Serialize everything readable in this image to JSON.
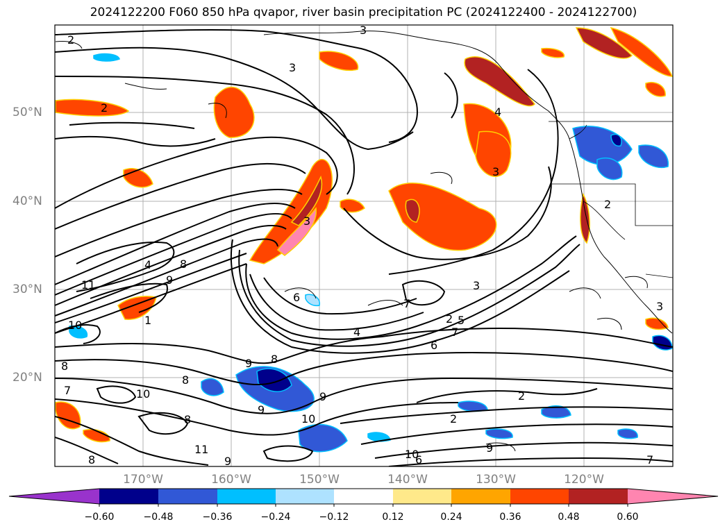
{
  "title": "2024122200 F060 850 hPa qvapor, river basin precipitation PC (2024122400 - 2024122700)",
  "lat_labels": [
    "50°N",
    "40°N",
    "30°N",
    "20°N"
  ],
  "lon_labels": [
    "170°W",
    "160°W",
    "150°W",
    "140°W",
    "130°W",
    "120°W"
  ],
  "colorbar": {
    "colors": [
      "#9933cc",
      "#00008b",
      "#3158d6",
      "#00bfff",
      "#aee2ff",
      "#ffffff",
      "#ffe98a",
      "#ffa500",
      "#ff4500",
      "#b22222",
      "#ff85b0"
    ],
    "tick_labels": [
      "−0.60",
      "−0.48",
      "−0.36",
      "−0.24",
      "−0.12",
      "0.12",
      "0.24",
      "0.36",
      "0.48",
      "0.60"
    ]
  },
  "contour_labels": [
    "2",
    "3",
    "3",
    "2",
    "4",
    "3",
    "2",
    "3",
    "4",
    "8",
    "11",
    "9",
    "10",
    "8",
    "6",
    "7",
    "1",
    "4",
    "3",
    "2",
    "6",
    "5",
    "7",
    "8",
    "9",
    "8",
    "10",
    "7",
    "2",
    "2",
    "8",
    "9",
    "9",
    "10",
    "11",
    "9",
    "10",
    "6",
    "8",
    "9",
    "7",
    "3"
  ]
}
